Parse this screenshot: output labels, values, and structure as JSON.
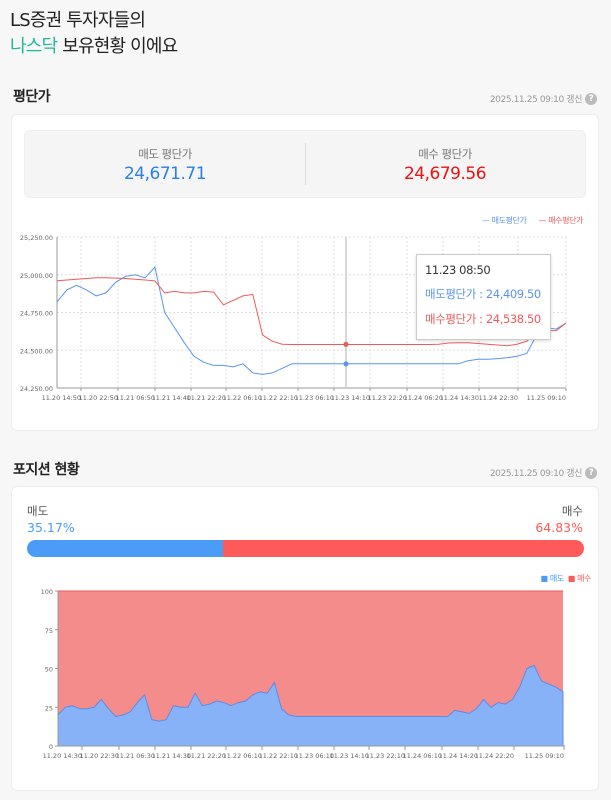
{
  "header": {
    "line1": "LS증권 투자자들의",
    "highlight": "나스닥",
    "line2_rest": " 보유현황 이에요"
  },
  "avg_section": {
    "title": "평단가",
    "updated": "2025.11.25 09:10 갱신",
    "help_icon": "question-circle-icon",
    "sell_label": "매도 평단가",
    "sell_value": "24,671.71",
    "buy_label": "매수 평단가",
    "buy_value": "24,679.56",
    "legend": {
      "sell": "매도평단가",
      "buy": "매수평단가"
    },
    "tooltip": {
      "time": "11.23 08:50",
      "sell": "매도평단가 : 24,409.50",
      "buy": "매수평단가 : 24,538.50"
    }
  },
  "position_section": {
    "title": "포지션 현황",
    "updated": "2025.11.25 09:10 갱신",
    "help_icon": "question-circle-icon",
    "sell_label": "매도",
    "sell_pct": "35.17%",
    "buy_label": "매수",
    "buy_pct": "64.83%",
    "sell_fraction": 35.17,
    "legend": {
      "sell": "매도",
      "buy": "매수"
    }
  },
  "colors": {
    "sell": "#4a9cf6",
    "buy": "#ff5a5a",
    "sell_line": "#5b94f0",
    "buy_line": "#ee5a5a",
    "accent": "#1fb89a",
    "sell_area": "#88b2f7",
    "buy_area": "#f48c8c"
  },
  "chart_data": [
    {
      "type": "line",
      "ylim": [
        24250,
        25250
      ],
      "yticks": [
        "25,250.00",
        "25,000.00",
        "24,750.00",
        "24,500.00",
        "24,250.00"
      ],
      "ytick_values": [
        25250,
        25000,
        24750,
        24500,
        24250
      ],
      "xticks": [
        "11.20 14:50",
        "11.20 22:50",
        "11.21 06:50",
        "11.21 14:40",
        "11.21 22:20",
        "11.22 06:10",
        "11.22 22:10",
        "11.23 06:10",
        "11.23 14:10",
        "11.23 22:20",
        "11.24 06:20",
        "11.24 14:30",
        "11.24 22:30",
        "11.25 09:10"
      ],
      "grid": true,
      "legend_position": "top-right",
      "series": [
        {
          "name": "매도평단가",
          "values": [
            24820,
            24900,
            24930,
            24900,
            24860,
            24880,
            24950,
            24990,
            25000,
            24980,
            25050,
            24750,
            24650,
            24550,
            24460,
            24420,
            24400,
            24400,
            24390,
            24410,
            24350,
            24340,
            24350,
            24380,
            24410,
            24410,
            24410,
            24410,
            24410,
            24410,
            24410,
            24410,
            24410,
            24410,
            24410,
            24410,
            24410,
            24410,
            24410,
            24410,
            24410,
            24410,
            24430,
            24440,
            24440,
            24445,
            24450,
            24460,
            24480,
            24600,
            24650,
            24640,
            24680
          ]
        },
        {
          "name": "매수평단가",
          "values": [
            24960,
            24965,
            24970,
            24975,
            24980,
            24980,
            24978,
            24975,
            24970,
            24965,
            24960,
            24880,
            24890,
            24880,
            24880,
            24890,
            24885,
            24800,
            24830,
            24860,
            24870,
            24600,
            24560,
            24540,
            24538,
            24538,
            24538,
            24538,
            24538,
            24538,
            24538,
            24538,
            24538,
            24538,
            24538,
            24538,
            24538,
            24538,
            24538,
            24540,
            24548,
            24550,
            24550,
            24545,
            24540,
            24535,
            24530,
            24540,
            24560,
            24620,
            24630,
            24630,
            24680
          ]
        }
      ],
      "highlight": {
        "x": "11.23 08:50",
        "sell": 24409.5,
        "buy": 24538.5
      }
    },
    {
      "type": "area",
      "stacked_percent": true,
      "ylim": [
        0,
        100
      ],
      "yticks": [
        "100",
        "75",
        "50",
        "25",
        "0"
      ],
      "ytick_values": [
        100,
        75,
        50,
        25,
        0
      ],
      "xticks": [
        "11.20 14:30",
        "11.20 22:30",
        "11.21 06:30",
        "11.21 14:30",
        "11.21 22:20",
        "11.22 06:10",
        "11.22 22:10",
        "11.23 06:10",
        "11.23 14:10",
        "11.23 22:10",
        "11.24 06:10",
        "11.24 14:20",
        "11.24 22:20",
        "11.25 09:10"
      ],
      "legend_position": "top-right",
      "series": [
        {
          "name": "매도",
          "values": [
            20,
            25,
            26,
            24,
            24,
            25,
            30,
            24,
            19,
            20,
            22,
            28,
            33,
            17,
            16,
            17,
            26,
            25,
            25,
            34,
            26,
            27,
            29,
            28,
            26,
            28,
            29,
            33,
            35,
            34,
            41,
            24,
            20,
            19,
            19,
            19,
            19,
            19,
            19,
            19,
            19,
            19,
            19,
            19,
            19,
            19,
            19,
            19,
            19,
            19,
            19,
            19,
            19,
            19,
            19,
            23,
            22,
            21,
            24,
            30,
            25,
            28,
            27,
            30,
            38,
            50,
            52,
            42,
            40,
            38,
            35
          ]
        },
        {
          "name": "매수",
          "values": [
            80,
            75,
            74,
            76,
            76,
            75,
            70,
            76,
            81,
            80,
            78,
            72,
            67,
            83,
            84,
            83,
            74,
            75,
            75,
            66,
            74,
            73,
            71,
            72,
            74,
            72,
            71,
            67,
            65,
            66,
            59,
            76,
            80,
            81,
            81,
            81,
            81,
            81,
            81,
            81,
            81,
            81,
            81,
            81,
            81,
            81,
            81,
            81,
            81,
            81,
            81,
            81,
            81,
            81,
            81,
            77,
            78,
            79,
            76,
            70,
            75,
            72,
            73,
            70,
            62,
            50,
            48,
            58,
            60,
            62,
            65
          ]
        }
      ]
    }
  ]
}
